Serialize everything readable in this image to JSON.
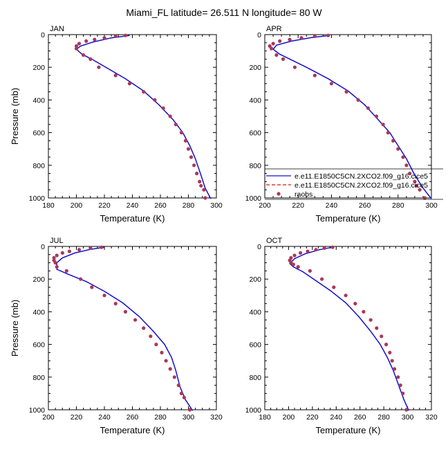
{
  "title": "Miami_FL  latitude= 26.511 N longitude= 80 W",
  "colors": {
    "model1": "#1414d2",
    "model2": "#e01010",
    "raobs": "#a8385a",
    "axis": "#000000"
  },
  "legend": {
    "entries": [
      {
        "label": "e.e11.E1850C5CN.2XCO2.f09_g16.cice5",
        "style": "solid",
        "color": "#1414d2"
      },
      {
        "label": "e.e11.E1850C5CN.2XCO2.f09_g16.cice5",
        "style": "dashed",
        "color": "#e01010"
      },
      {
        "label": "raobs",
        "style": "marker",
        "color": "#a8385a"
      }
    ]
  },
  "chart_data": [
    {
      "type": "line",
      "panel": "JAN",
      "xlabel": "Temperature (K)",
      "ylabel": "Pressure (mb)",
      "xlim": [
        180,
        300
      ],
      "ylim": [
        1000,
        0
      ],
      "xticks": [
        180,
        200,
        220,
        240,
        260,
        280,
        300
      ],
      "yticks": [
        0,
        200,
        400,
        600,
        800,
        1000
      ],
      "series": [
        {
          "name": "model",
          "x": [
            238,
            225,
            212,
            203,
            200,
            204,
            212,
            222,
            235,
            248,
            259,
            269,
            276,
            281,
            285,
            289,
            292,
            296
          ],
          "y": [
            5,
            20,
            45,
            70,
            90,
            120,
            155,
            205,
            270,
            345,
            430,
            520,
            600,
            680,
            760,
            860,
            940,
            1005
          ]
        },
        {
          "name": "raobs",
          "x": [
            235,
            228,
            220,
            213,
            207,
            202,
            200,
            200,
            205,
            210,
            216,
            228,
            238,
            248,
            256,
            262,
            267,
            271,
            275,
            278,
            280,
            282,
            284,
            286,
            288,
            289,
            291,
            292
          ],
          "y": [
            5,
            10,
            20,
            30,
            40,
            55,
            70,
            85,
            125,
            150,
            200,
            250,
            300,
            350,
            400,
            450,
            500,
            550,
            600,
            650,
            700,
            750,
            800,
            850,
            900,
            925,
            950,
            1000
          ]
        }
      ]
    },
    {
      "type": "line",
      "panel": "APR",
      "xlabel": "Temperature (K)",
      "ylabel": "",
      "xlim": [
        200,
        300
      ],
      "ylim": [
        1000,
        0
      ],
      "xticks": [
        200,
        220,
        240,
        260,
        280,
        300
      ],
      "yticks": [
        0,
        200,
        400,
        600,
        800,
        1000
      ],
      "series": [
        {
          "name": "model",
          "x": [
            239,
            228,
            216,
            207,
            205,
            209,
            216,
            226,
            238,
            250,
            260,
            268,
            275,
            280,
            285,
            290,
            295,
            300
          ],
          "y": [
            5,
            18,
            40,
            65,
            90,
            120,
            155,
            205,
            270,
            345,
            430,
            520,
            600,
            680,
            760,
            860,
            940,
            1005
          ]
        },
        {
          "name": "raobs",
          "x": [
            238,
            230,
            222,
            215,
            209,
            205,
            203,
            204,
            207,
            211,
            218,
            230,
            240,
            249,
            256,
            262,
            267,
            271,
            274,
            277,
            280,
            283,
            285,
            287,
            290,
            291,
            293,
            296
          ],
          "y": [
            5,
            10,
            20,
            30,
            40,
            55,
            70,
            85,
            125,
            150,
            200,
            250,
            300,
            350,
            400,
            450,
            500,
            550,
            600,
            650,
            700,
            750,
            800,
            850,
            900,
            925,
            950,
            1000
          ]
        }
      ]
    },
    {
      "type": "line",
      "panel": "JUL",
      "xlabel": "Temperature (K)",
      "ylabel": "Pressure (mb)",
      "xlim": [
        200,
        320
      ],
      "ylim": [
        1000,
        0
      ],
      "xticks": [
        200,
        220,
        240,
        260,
        280,
        300,
        320
      ],
      "yticks": [
        0,
        200,
        400,
        600,
        800,
        1000
      ],
      "series": [
        {
          "name": "model",
          "x": [
            240,
            230,
            219,
            210,
            206,
            206,
            214,
            227,
            240,
            253,
            265,
            275,
            283,
            288,
            291,
            294,
            298,
            303
          ],
          "y": [
            5,
            18,
            40,
            70,
            100,
            140,
            170,
            215,
            275,
            345,
            430,
            520,
            600,
            680,
            760,
            860,
            940,
            1005
          ]
        },
        {
          "name": "raobs",
          "x": [
            238,
            230,
            222,
            215,
            210,
            206,
            204,
            204,
            205,
            206,
            213,
            223,
            231,
            240,
            248,
            255,
            262,
            268,
            273,
            277,
            281,
            284,
            287,
            290,
            293,
            295,
            297,
            301
          ],
          "y": [
            5,
            10,
            20,
            30,
            40,
            55,
            70,
            85,
            100,
            125,
            150,
            200,
            250,
            300,
            350,
            400,
            450,
            500,
            550,
            600,
            650,
            700,
            750,
            800,
            850,
            900,
            925,
            1000
          ]
        }
      ]
    },
    {
      "type": "line",
      "panel": "OCT",
      "xlabel": "Temperature (K)",
      "ylabel": "",
      "xlim": [
        180,
        320
      ],
      "ylim": [
        1000,
        0
      ],
      "xticks": [
        180,
        200,
        220,
        240,
        260,
        280,
        300,
        320
      ],
      "yticks": [
        0,
        200,
        400,
        600,
        800,
        1000
      ],
      "series": [
        {
          "name": "model",
          "x": [
            237,
            226,
            214,
            205,
            201,
            204,
            212,
            222,
            235,
            248,
            259,
            269,
            277,
            283,
            288,
            293,
            297,
            301
          ],
          "y": [
            5,
            20,
            45,
            75,
            105,
            125,
            155,
            205,
            270,
            345,
            430,
            520,
            600,
            680,
            760,
            860,
            940,
            1005
          ]
        },
        {
          "name": "raobs",
          "x": [
            237,
            230,
            223,
            216,
            210,
            205,
            202,
            201,
            202,
            204,
            208,
            218,
            228,
            238,
            248,
            256,
            263,
            269,
            274,
            278,
            282,
            285,
            287,
            289,
            292,
            294,
            296,
            299
          ],
          "y": [
            5,
            10,
            20,
            30,
            40,
            55,
            70,
            85,
            100,
            110,
            125,
            150,
            200,
            250,
            300,
            350,
            400,
            450,
            500,
            550,
            600,
            650,
            700,
            750,
            800,
            850,
            900,
            1000
          ]
        }
      ]
    }
  ]
}
